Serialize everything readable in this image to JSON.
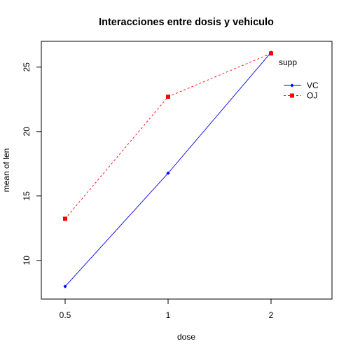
{
  "chart_data": {
    "type": "line",
    "title": "Interacciones entre dosis y vehiculo",
    "xlabel": "dose",
    "ylabel": "mean of  len",
    "categories": [
      "0.5",
      "1",
      "2"
    ],
    "ylim": [
      7.0,
      27.0
    ],
    "yticks": [
      10,
      15,
      20,
      25
    ],
    "grid": false,
    "legend_placement": "top-right",
    "legend_title": "supp",
    "series": [
      {
        "name": "VC",
        "values": [
          7.98,
          16.77,
          26.14
        ],
        "color": "#0000ff",
        "line_style": "solid",
        "marker": "diamond"
      },
      {
        "name": "OJ",
        "values": [
          13.23,
          22.7,
          26.06
        ],
        "color": "#ff0000",
        "line_style": "dashed",
        "marker": "square"
      }
    ]
  }
}
